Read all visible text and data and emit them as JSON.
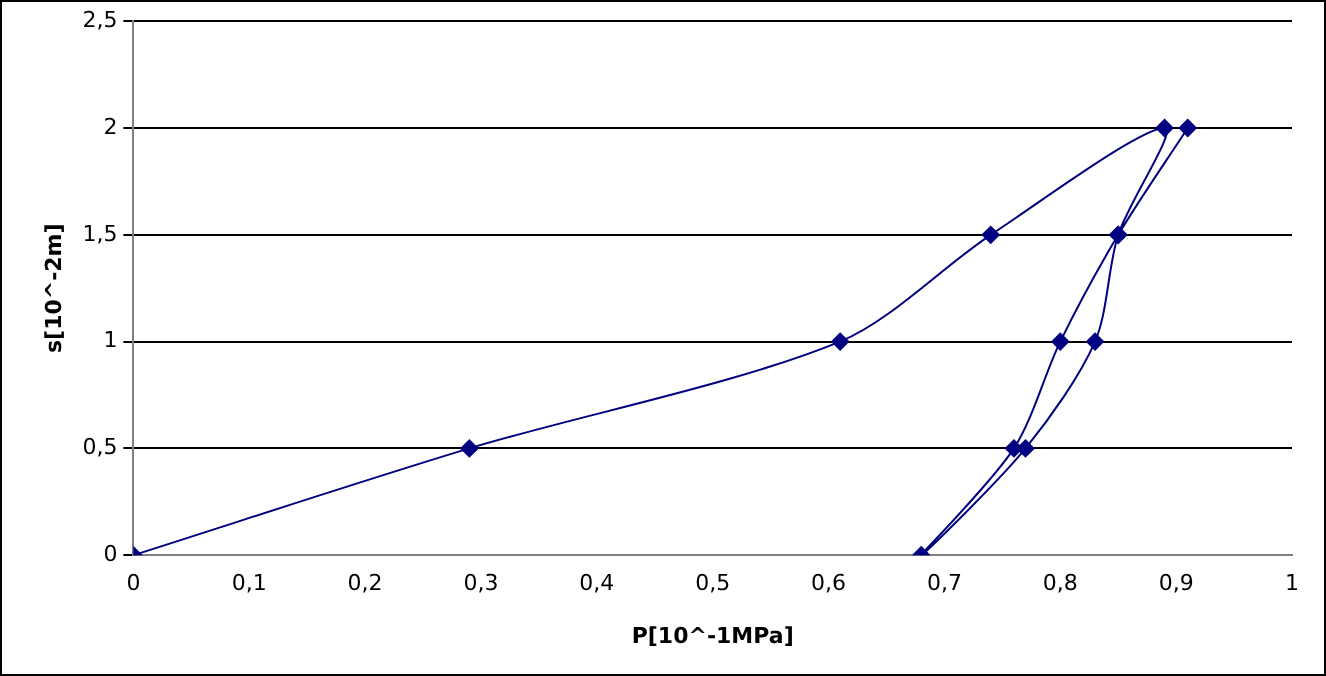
{
  "chart_data": {
    "type": "line",
    "xlabel": "P[10^-1MPa]",
    "ylabel": "s[10^-2m]",
    "x": [
      0,
      0.29,
      0.61,
      0.74,
      0.89,
      0.85,
      0.83,
      0.77,
      0.68,
      0.76,
      0.8,
      0.85,
      0.91
    ],
    "series": [
      {
        "color": "#000080",
        "values": [
          0,
          0.5,
          1,
          1.5,
          2,
          1.5,
          1,
          0.5,
          0,
          0.5,
          1,
          1.5,
          2
        ]
      }
    ],
    "xlim": [
      0,
      1
    ],
    "ylim": [
      0,
      2.5
    ],
    "xticks": [
      0,
      {
        "value": 0.1,
        "label": "0,1"
      },
      {
        "value": 0.2,
        "label": "0,2"
      },
      {
        "value": 0.3,
        "label": "0,3"
      },
      {
        "value": 0.4,
        "label": "0,4"
      },
      {
        "value": 0.5,
        "label": "0,5"
      },
      {
        "value": 0.6,
        "label": "0,6"
      },
      {
        "value": 0.7,
        "label": "0,7"
      },
      {
        "value": 0.8,
        "label": "0,8"
      },
      {
        "value": 0.9,
        "label": "0,9"
      },
      1
    ],
    "yticks": [
      0,
      {
        "value": 0.5,
        "label": "0,5"
      },
      1,
      {
        "value": 1.5,
        "label": "1,5"
      },
      2,
      {
        "value": 2.5,
        "label": "2,5"
      }
    ],
    "grid": "y",
    "legend": false,
    "marker": "diamond",
    "line_style": "solid"
  }
}
